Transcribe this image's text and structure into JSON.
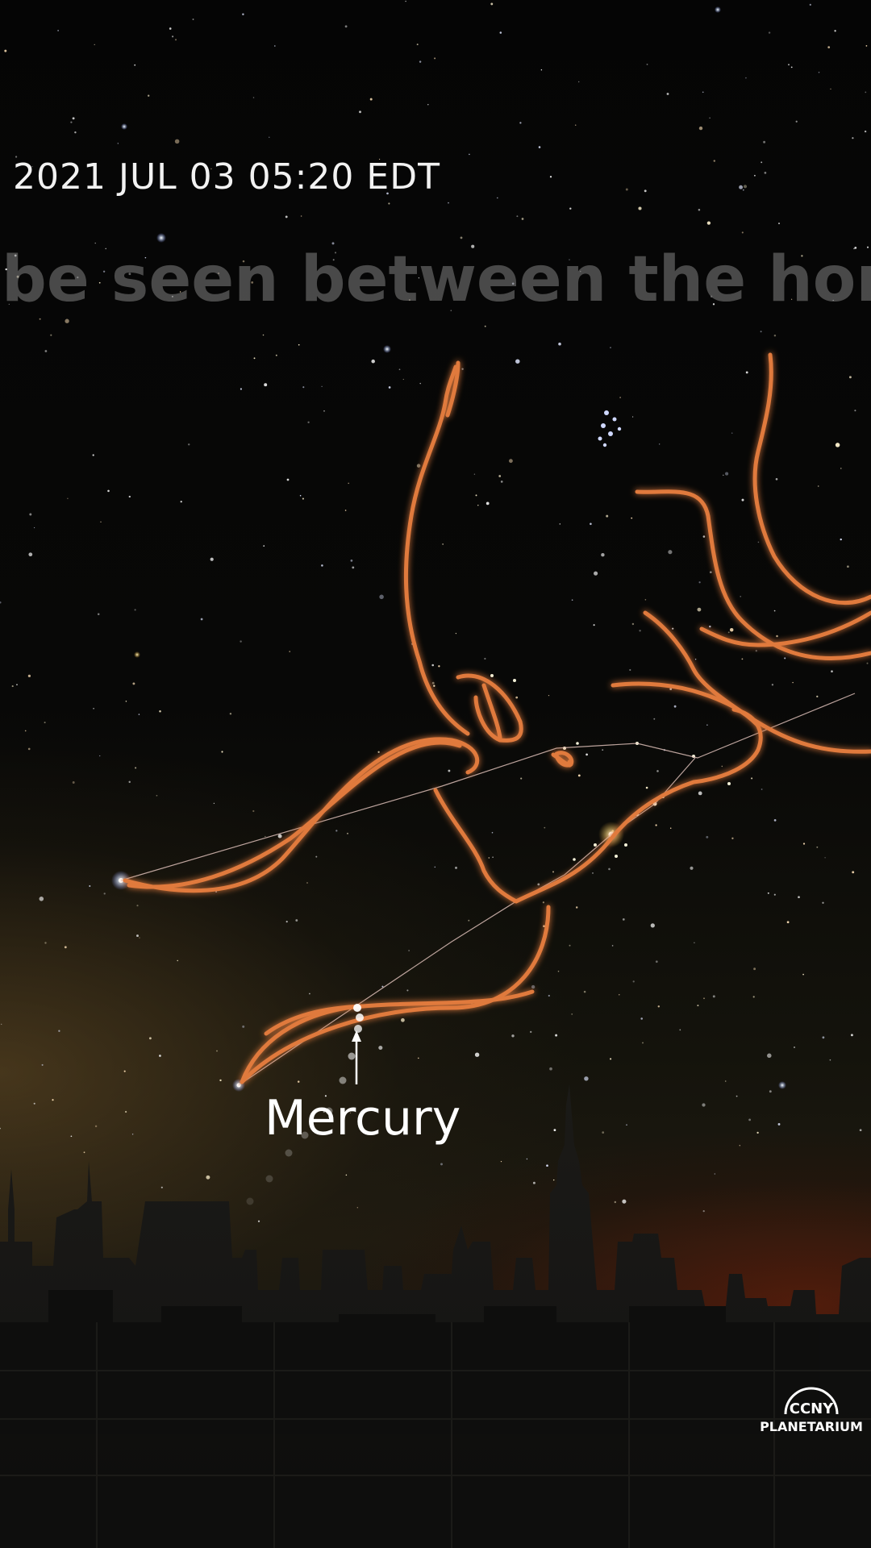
{
  "overlay": {
    "timestamp": "2021 JUL 03 05:20 EDT",
    "caption": "be seen between the horns of Ta"
  },
  "labels": {
    "planet": "Mercury"
  },
  "logo": {
    "line1": "CCNY",
    "line2": "PLANETARIUM"
  },
  "colors": {
    "constellation_art": "#e07a3c",
    "constellation_lines": "#e9c9c2",
    "text": "#ffffff",
    "caption": "#8a8a8a"
  },
  "icons": {
    "logo": "planetarium-dome-logo"
  }
}
